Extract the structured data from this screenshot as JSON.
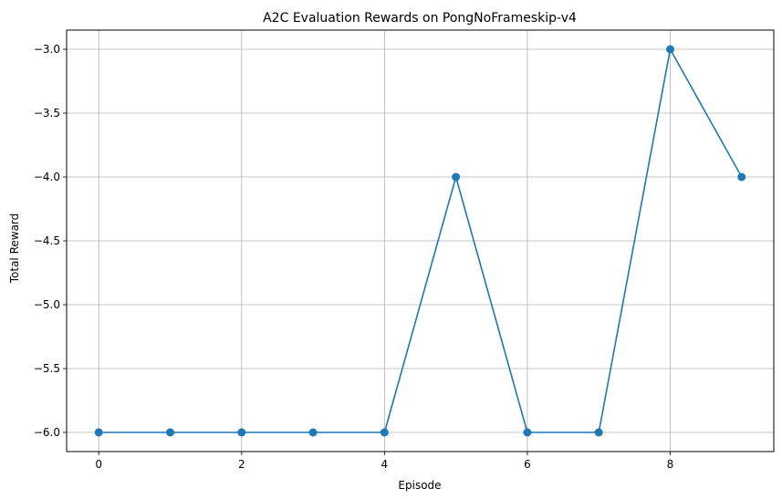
{
  "chart_data": {
    "type": "line",
    "title": "A2C Evaluation Rewards on PongNoFrameskip-v4",
    "xlabel": "Episode",
    "ylabel": "Total Reward",
    "x": [
      0,
      1,
      2,
      3,
      4,
      5,
      6,
      7,
      8,
      9
    ],
    "series": [
      {
        "values": [
          -6,
          -6,
          -6,
          -6,
          -6,
          -4,
          -6,
          -6,
          -3,
          -4
        ]
      }
    ],
    "xlim": [
      -0.45,
      9.45
    ],
    "ylim": [
      -6.15,
      -2.85
    ],
    "xticks": [
      0,
      2,
      4,
      6,
      8
    ],
    "xtick_labels": [
      "0",
      "2",
      "4",
      "6",
      "8"
    ],
    "yticks": [
      -6.0,
      -5.5,
      -5.0,
      -4.5,
      -4.0,
      -3.5,
      -3.0
    ],
    "ytick_labels": [
      "−6.0",
      "−5.5",
      "−5.0",
      "−4.5",
      "−4.0",
      "−3.5",
      "−3.0"
    ],
    "grid": true,
    "marker": "circle",
    "colors": {
      "line": "#1f77b4",
      "grid": "#b0b0b0",
      "axes": "#000000"
    }
  }
}
